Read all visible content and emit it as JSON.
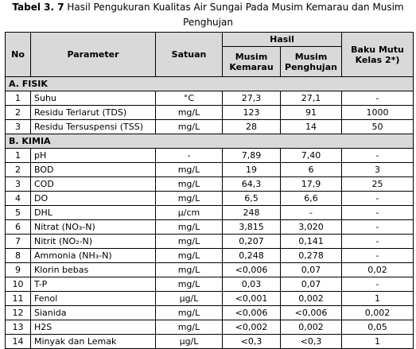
{
  "caption": {
    "label": "Tabel 3. 7",
    "text": " Hasil Pengukuran Kualitas Air Sungai Pada Musim Kemarau dan Musim",
    "line2": "Penghujan"
  },
  "headers": {
    "no": "No",
    "parameter": "Parameter",
    "satuan": "Satuan",
    "hasil": "Hasil",
    "kemarau": "Musim Kemarau",
    "penghujan": "Musim Penghujan",
    "baku": "Baku Mutu Kelas 2*)"
  },
  "sections": [
    {
      "title": "A. FISIK",
      "rows": [
        {
          "no": "1",
          "param": "Suhu",
          "satuan": "°C",
          "kemarau": "27,3",
          "penghujan": "27,1",
          "baku": "-"
        },
        {
          "no": "2",
          "param": "Residu Terlarut (TDS)",
          "satuan": "mg/L",
          "kemarau": "123",
          "penghujan": "91",
          "baku": "1000"
        },
        {
          "no": "3",
          "param": "Residu Tersuspensi (TSS)",
          "satuan": "mg/L",
          "kemarau": "28",
          "penghujan": "14",
          "baku": "50"
        }
      ]
    },
    {
      "title": "B. KIMIA",
      "rows": [
        {
          "no": "1",
          "param": "pH",
          "satuan": "-",
          "kemarau": "7,89",
          "penghujan": "7,40",
          "baku": "-"
        },
        {
          "no": "2",
          "param": "BOD",
          "satuan": "mg/L",
          "kemarau": "19",
          "penghujan": "6",
          "baku": "3"
        },
        {
          "no": "3",
          "param": "COD",
          "satuan": "mg/L",
          "kemarau": "64,3",
          "penghujan": "17,9",
          "baku": "25"
        },
        {
          "no": "4",
          "param": "DO",
          "satuan": "mg/L",
          "kemarau": "6,5",
          "penghujan": "6,6",
          "baku": "-"
        },
        {
          "no": "5",
          "param": "DHL",
          "satuan": "μ/cm",
          "kemarau": "248",
          "penghujan": "-",
          "baku": "-"
        },
        {
          "no": "6",
          "param": "Nitrat (NO₃-N)",
          "satuan": "mg/L",
          "kemarau": "3,815",
          "penghujan": "3,020",
          "baku": "-"
        },
        {
          "no": "7",
          "param": "Nitrit (NO₂-N)",
          "satuan": "mg/L",
          "kemarau": "0,207",
          "penghujan": "0,141",
          "baku": "-"
        },
        {
          "no": "8",
          "param": "Ammonia (NH₃-N)",
          "satuan": "mg/L",
          "kemarau": "0,248",
          "penghujan": "0,278",
          "baku": "-"
        },
        {
          "no": "9",
          "param": "Klorin bebas",
          "satuan": "mg/L",
          "kemarau": "<0,006",
          "penghujan": "0,07",
          "baku": "0,02"
        },
        {
          "no": "10",
          "param": "T-P",
          "satuan": "mg/L",
          "kemarau": "0,03",
          "penghujan": "0,07",
          "baku": "-"
        },
        {
          "no": "11",
          "param": "Fenol",
          "satuan": "μg/L",
          "kemarau": "<0,001",
          "penghujan": "0,002",
          "baku": "1"
        },
        {
          "no": "12",
          "param": "Sianida",
          "satuan": "mg/L",
          "kemarau": "<0,006",
          "penghujan": "<0,006",
          "baku": "0,002"
        },
        {
          "no": "13",
          "param": "H2S",
          "satuan": "mg/L",
          "kemarau": "<0,002",
          "penghujan": "0,002",
          "baku": "0,05"
        },
        {
          "no": "14",
          "param": "Minyak dan Lemak",
          "satuan": "μg/L",
          "kemarau": "<0,3",
          "penghujan": "<0,3",
          "baku": "1"
        }
      ]
    }
  ]
}
